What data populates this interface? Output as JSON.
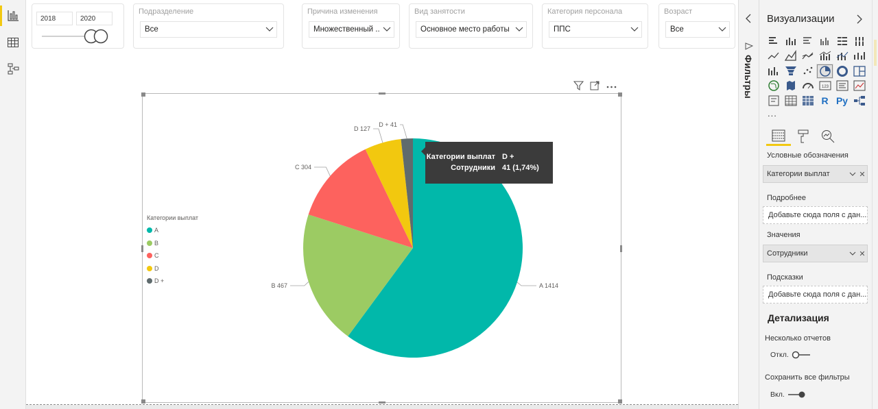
{
  "slicers": {
    "year": {
      "from": "2018",
      "to": "2020"
    },
    "subdivision": {
      "title": "Подразделение",
      "value": "Все"
    },
    "reason": {
      "title": "Причина изменения",
      "value": "Множественный ..."
    },
    "employment": {
      "title": "Вид занятости",
      "value": "Основное место работы"
    },
    "category": {
      "title": "Категория персонала",
      "value": "ППС"
    },
    "age": {
      "title": "Возраст",
      "value": "Все"
    }
  },
  "visual_header_icons": [
    "filter-icon",
    "focus-mode-icon",
    "more-options-icon"
  ],
  "tooltip": {
    "row1_key": "Категории выплат",
    "row1_val": "D +",
    "row2_key": "Сотрудники",
    "row2_val": "41 (1,74%)"
  },
  "chart_data": {
    "type": "pie",
    "legend_title": "Категории выплат",
    "legend_position": "left",
    "categories": [
      "A",
      "B",
      "C",
      "D",
      "D +"
    ],
    "values": [
      1414,
      467,
      304,
      127,
      41
    ],
    "colors": [
      "#01b8aa",
      "#9ccb63",
      "#fd625e",
      "#f2c80f",
      "#5f6b6d"
    ],
    "data_labels": [
      "A 1414",
      "B 467",
      "C 304",
      "D 127",
      "D + 41"
    ]
  },
  "filters_pane": {
    "label": "Фильтры"
  },
  "visualizations_pane": {
    "title": "Визуализации",
    "more": "...",
    "icons": [
      "stacked-bar-icon",
      "stacked-column-icon",
      "clustered-bar-icon",
      "clustered-column-icon",
      "100-bar-icon",
      "100-column-icon",
      "line-icon",
      "area-icon",
      "stacked-area-icon",
      "line-column-icon",
      "line-clustered-icon",
      "ribbon-icon",
      "waterfall-icon",
      "funnel-icon",
      "scatter-icon",
      "pie-icon",
      "donut-icon",
      "treemap-icon",
      "map-icon",
      "filled-map-icon",
      "gauge-icon",
      "card-icon",
      "multirow-card-icon",
      "kpi-icon",
      "slicer-icon",
      "table-icon",
      "matrix-icon",
      "r-visual-icon",
      "python-visual-icon",
      "decomposition-tree-icon"
    ],
    "r_label": "R",
    "py_label": "Py",
    "legend_label": "Условные обозначения",
    "legend_field": "Категории выплат",
    "details_label": "Подробнее",
    "details_placeholder": "Добавьте сюда поля с дан...",
    "values_label": "Значения",
    "values_field": "Сотрудники",
    "tooltips_label": "Подсказки",
    "tooltips_placeholder": "Добавьте сюда поля с дан...",
    "drillthrough_title": "Детализация",
    "multi_report_label": "Несколько отчетов",
    "multi_report_state": "Откл.",
    "keep_filters_label": "Сохранить все фильтры",
    "keep_filters_state": "Вкл."
  }
}
